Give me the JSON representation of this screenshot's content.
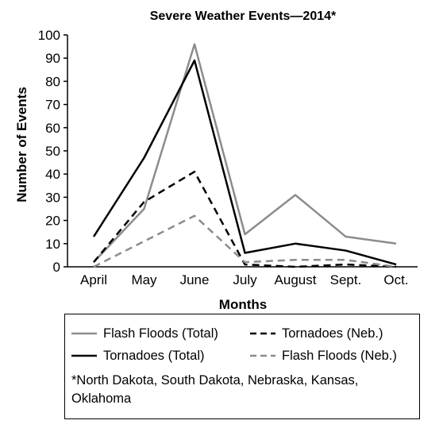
{
  "chart_data": {
    "type": "line",
    "title": "Severe Weather Events—2014*",
    "xlabel": "Months",
    "ylabel": "Number of Events",
    "categories": [
      "April",
      "May",
      "June",
      "July",
      "August",
      "Sept.",
      "Oct."
    ],
    "ylim": [
      0,
      100
    ],
    "yticks": [
      "0",
      "10",
      "20",
      "30",
      "40",
      "50",
      "60",
      "70",
      "80",
      "90",
      "100"
    ],
    "grid": false,
    "legend_position": "bottom",
    "series": [
      {
        "name": "Flash Floods (Total)",
        "values": [
          2,
          25,
          96,
          14,
          31,
          13,
          10
        ],
        "color": "#8c8c8c",
        "dash": "solid"
      },
      {
        "name": "Tornadoes (Total)",
        "values": [
          13,
          47,
          89,
          6,
          10,
          7,
          1
        ],
        "color": "#000000",
        "dash": "solid"
      },
      {
        "name": "Tornadoes (Neb.)",
        "values": [
          2,
          28,
          41,
          1,
          0,
          1,
          0
        ],
        "color": "#000000",
        "dash": "dashed"
      },
      {
        "name": "Flash Floods (Neb.)",
        "values": [
          0,
          11,
          22,
          2,
          3,
          3,
          0
        ],
        "color": "#8c8c8c",
        "dash": "dashed"
      }
    ],
    "footnote": "*North Dakota, South Dakota, Nebraska, Kansas, Oklahoma"
  }
}
